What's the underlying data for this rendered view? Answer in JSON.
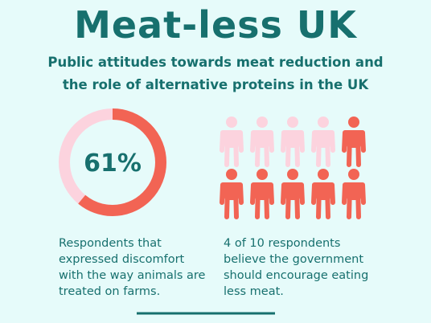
{
  "header": {
    "title": "Meat-less UK",
    "subtitle": "Public attitudes towards meat reduction and the role of alternative proteins in the UK"
  },
  "chart_data": [
    {
      "type": "donut",
      "value": 61,
      "value_label": "61%",
      "color": "#f26454",
      "track_color": "#fcd3de",
      "caption": "Respondents that expressed discomfort with the way animals are treated on farms."
    },
    {
      "type": "pictogram",
      "value": 4,
      "total": 10,
      "color": "#fcd3de",
      "rest_color": "#f26454",
      "caption": "4 of 10 respondents believe the government should encourage eating less meat."
    }
  ]
}
